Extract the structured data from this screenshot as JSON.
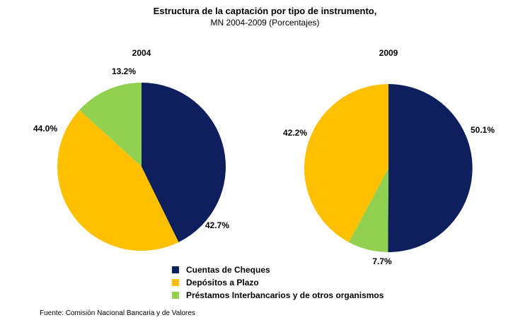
{
  "title": "Estructura de la captación por tipo de instrumento,",
  "subtitle": "MN 2004-2009 (Porcentajes)",
  "source": "Fuente: Comisión Nacional Bancaria y de Valores",
  "chart_data": [
    {
      "type": "pie",
      "title": "2004",
      "labels": [
        "Cuentas de Cheques",
        "Depósitos a Plazo",
        "Préstamos Interbancarios y de otros organismos"
      ],
      "values": [
        42.7,
        44.0,
        13.2
      ],
      "value_labels": [
        "42.7%",
        "44.0%",
        "13.2%"
      ],
      "colors": [
        "#0D1F5C",
        "#FFC000",
        "#92D050"
      ]
    },
    {
      "type": "pie",
      "title": "2009",
      "labels": [
        "Cuentas de Cheques",
        "Depósitos a Plazo",
        "Préstamos Interbancarios y de otros organismos"
      ],
      "values": [
        50.1,
        42.2,
        7.7
      ],
      "value_labels": [
        "50.1%",
        "42.2%",
        "7.7%"
      ],
      "colors": [
        "#0D1F5C",
        "#FFC000",
        "#92D050"
      ]
    }
  ],
  "legend": {
    "items": [
      {
        "label": "Cuentas de Cheques",
        "color": "#0D1F5C"
      },
      {
        "label": "Depósitos a Plazo",
        "color": "#FFC000"
      },
      {
        "label": "Préstamos Interbancarios y de otros organismos",
        "color": "#92D050"
      }
    ]
  }
}
